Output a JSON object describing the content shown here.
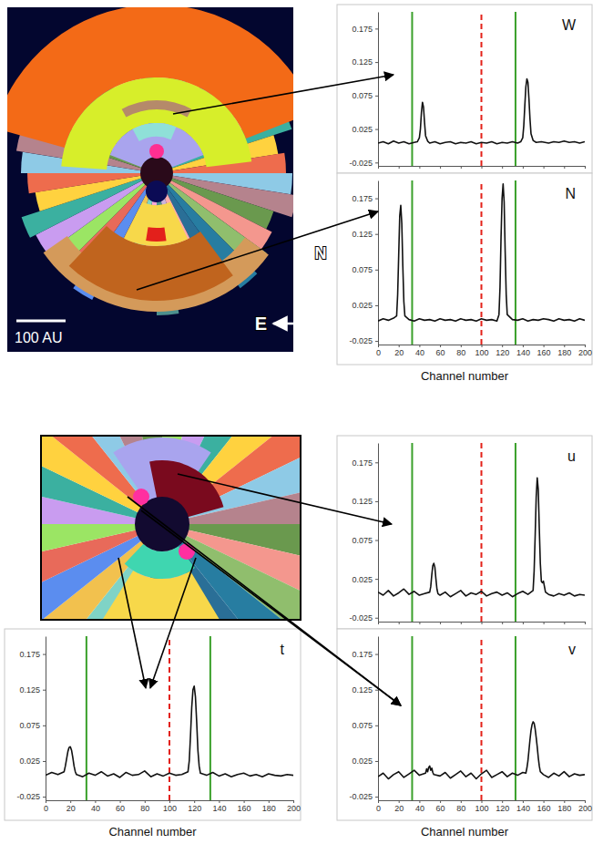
{
  "map": {
    "scale_label": "100 AU",
    "north_label": "N",
    "east_label": "E"
  },
  "chart_data": [
    {
      "type": "line",
      "title": "W",
      "color": "#111111",
      "tick_labels": "y",
      "xlim": [
        0,
        200
      ],
      "xticks": [
        0,
        20,
        40,
        60,
        80,
        100,
        120,
        140,
        160,
        180,
        200
      ],
      "ylim": [
        -0.03,
        0.2
      ],
      "yticks": [
        -0.025,
        0.025,
        0.075,
        0.125,
        0.175
      ],
      "vlines": [
        {
          "x": 33,
          "color": "#3aa02a",
          "line_style": "solid"
        },
        {
          "x": 100,
          "color": "#e32119",
          "line_style": "dashed"
        },
        {
          "x": 133,
          "color": "#3aa02a",
          "line_style": "solid"
        }
      ],
      "x": [
        0,
        5,
        10,
        15,
        20,
        25,
        30,
        35,
        38,
        40,
        41,
        42,
        43,
        44,
        45,
        46,
        48,
        50,
        55,
        60,
        65,
        70,
        75,
        80,
        85,
        90,
        95,
        100,
        105,
        110,
        115,
        120,
        125,
        130,
        135,
        138,
        140,
        141,
        142,
        143,
        144,
        145,
        146,
        147,
        148,
        150,
        153,
        158,
        165,
        170,
        175,
        180,
        185,
        190,
        195,
        200
      ],
      "values": [
        0.004,
        0.006,
        0.003,
        0.007,
        0.004,
        0.006,
        0.003,
        0.005,
        0.006,
        0.012,
        0.025,
        0.05,
        0.065,
        0.058,
        0.035,
        0.015,
        0.007,
        0.004,
        0.006,
        0.003,
        0.005,
        0.006,
        0.003,
        0.005,
        0.004,
        0.006,
        0.003,
        0.005,
        0.004,
        0.006,
        0.003,
        0.005,
        0.004,
        0.006,
        0.004,
        0.006,
        0.012,
        0.03,
        0.06,
        0.088,
        0.1,
        0.095,
        0.07,
        0.04,
        0.018,
        0.008,
        0.005,
        0.006,
        0.004,
        0.006,
        0.005,
        0.007,
        0.005,
        0.006,
        0.004,
        0.006
      ]
    },
    {
      "type": "line",
      "title": "N",
      "xlabel": "Channel number",
      "color": "#111111",
      "xlim": [
        0,
        200
      ],
      "xticks": [
        0,
        20,
        40,
        60,
        80,
        100,
        120,
        140,
        160,
        180,
        200
      ],
      "ylim": [
        -0.03,
        0.2
      ],
      "yticks": [
        -0.025,
        0.025,
        0.075,
        0.125,
        0.175
      ],
      "vlines": [
        {
          "x": 33,
          "color": "#3aa02a",
          "line_style": "solid"
        },
        {
          "x": 100,
          "color": "#e32119",
          "line_style": "dashed"
        },
        {
          "x": 133,
          "color": "#3aa02a",
          "line_style": "solid"
        }
      ],
      "x": [
        0,
        5,
        10,
        15,
        18,
        19,
        20,
        21,
        22,
        23,
        24,
        25,
        26,
        30,
        35,
        40,
        45,
        50,
        55,
        60,
        65,
        70,
        75,
        80,
        85,
        90,
        95,
        100,
        105,
        110,
        115,
        117,
        118,
        119,
        120,
        121,
        122,
        123,
        124,
        125,
        130,
        135,
        140,
        145,
        150,
        155,
        160,
        165,
        170,
        175,
        180,
        185,
        190,
        195,
        200
      ],
      "values": [
        0.003,
        0.006,
        0.004,
        0.007,
        0.01,
        0.04,
        0.095,
        0.15,
        0.165,
        0.14,
        0.08,
        0.03,
        0.01,
        0.005,
        0.003,
        0.006,
        0.004,
        0.005,
        0.003,
        0.006,
        0.004,
        0.005,
        0.003,
        0.006,
        0.004,
        0.005,
        0.003,
        0.006,
        0.004,
        0.005,
        0.003,
        0.012,
        0.05,
        0.12,
        0.175,
        0.195,
        0.17,
        0.1,
        0.04,
        0.012,
        0.005,
        0.004,
        0.006,
        0.003,
        0.005,
        0.004,
        0.006,
        0.005,
        0.003,
        0.006,
        0.004,
        0.005,
        0.003,
        0.006,
        0.004
      ]
    },
    {
      "type": "line",
      "title": "u",
      "color": "#111111",
      "tick_labels": "y",
      "xlim": [
        0,
        200
      ],
      "xticks": [
        0,
        20,
        40,
        60,
        80,
        100,
        120,
        140,
        160,
        180,
        200
      ],
      "ylim": [
        -0.03,
        0.2
      ],
      "yticks": [
        -0.025,
        0.025,
        0.075,
        0.125,
        0.175
      ],
      "vlines": [
        {
          "x": 33,
          "color": "#3aa02a",
          "line_style": "solid"
        },
        {
          "x": 100,
          "color": "#e32119",
          "line_style": "dashed"
        },
        {
          "x": 133,
          "color": "#3aa02a",
          "line_style": "solid"
        }
      ],
      "x": [
        0,
        5,
        10,
        15,
        20,
        25,
        30,
        35,
        40,
        45,
        50,
        51,
        52,
        53,
        54,
        55,
        56,
        57,
        58,
        60,
        65,
        70,
        75,
        80,
        85,
        90,
        95,
        100,
        105,
        110,
        115,
        120,
        125,
        130,
        135,
        140,
        145,
        150,
        151,
        152,
        153,
        154,
        155,
        156,
        157,
        158,
        159,
        160,
        161,
        162,
        165,
        170,
        175,
        180,
        185,
        190,
        195,
        200
      ],
      "values": [
        0.008,
        0.004,
        0.01,
        0.003,
        0.007,
        0.012,
        0.005,
        0.009,
        0.004,
        0.006,
        0.008,
        0.015,
        0.03,
        0.042,
        0.045,
        0.04,
        0.025,
        0.012,
        0.006,
        0.004,
        0.008,
        0.002,
        0.006,
        0.01,
        0.003,
        0.007,
        0.005,
        0.009,
        0.003,
        0.006,
        0.008,
        0.004,
        0.007,
        0.002,
        0.006,
        0.009,
        0.005,
        0.01,
        0.035,
        0.08,
        0.13,
        0.155,
        0.14,
        0.09,
        0.045,
        0.022,
        0.02,
        0.022,
        0.015,
        0.008,
        0.005,
        0.003,
        0.006,
        0.004,
        0.007,
        0.003,
        0.005,
        0.004
      ]
    },
    {
      "type": "line",
      "title": "v",
      "xlabel": "Channel number",
      "color": "#111111",
      "xlim": [
        0,
        200
      ],
      "xticks": [
        0,
        20,
        40,
        60,
        80,
        100,
        120,
        140,
        160,
        180,
        200
      ],
      "ylim": [
        -0.03,
        0.2
      ],
      "yticks": [
        -0.025,
        0.025,
        0.075,
        0.125,
        0.175
      ],
      "vlines": [
        {
          "x": 33,
          "color": "#3aa02a",
          "line_style": "solid"
        },
        {
          "x": 100,
          "color": "#e32119",
          "line_style": "dashed"
        },
        {
          "x": 133,
          "color": "#3aa02a",
          "line_style": "solid"
        }
      ],
      "x": [
        0,
        5,
        10,
        15,
        20,
        25,
        30,
        35,
        40,
        46,
        47,
        48,
        49,
        50,
        51,
        52,
        53,
        54,
        60,
        65,
        70,
        75,
        80,
        85,
        90,
        95,
        100,
        105,
        110,
        115,
        120,
        125,
        130,
        135,
        140,
        143,
        144,
        145,
        146,
        147,
        148,
        149,
        150,
        151,
        152,
        153,
        154,
        155,
        156,
        157,
        160,
        165,
        170,
        175,
        180,
        185,
        190,
        195,
        200
      ],
      "values": [
        0.003,
        0.008,
        0.0,
        0.006,
        0.01,
        0.002,
        0.007,
        0.012,
        0.005,
        0.008,
        0.014,
        0.01,
        0.016,
        0.018,
        0.012,
        0.015,
        0.009,
        0.006,
        0.004,
        0.009,
        0.001,
        0.006,
        0.011,
        0.003,
        0.008,
        0.0,
        0.007,
        0.012,
        0.002,
        0.006,
        0.01,
        0.003,
        0.008,
        0.005,
        0.009,
        0.008,
        0.015,
        0.025,
        0.04,
        0.055,
        0.068,
        0.076,
        0.08,
        0.078,
        0.07,
        0.058,
        0.045,
        0.03,
        0.018,
        0.01,
        0.006,
        0.002,
        0.008,
        0.004,
        0.01,
        0.003,
        0.007,
        0.005,
        0.006
      ]
    },
    {
      "type": "line",
      "title": "t",
      "xlabel": "Channel number",
      "color": "#111111",
      "xlim": [
        0,
        200
      ],
      "xticks": [
        0,
        20,
        40,
        60,
        80,
        100,
        120,
        140,
        160,
        180,
        200
      ],
      "ylim": [
        -0.03,
        0.2
      ],
      "yticks": [
        -0.025,
        0.025,
        0.075,
        0.125,
        0.175
      ],
      "vlines": [
        {
          "x": 33,
          "color": "#3aa02a",
          "line_style": "solid"
        },
        {
          "x": 100,
          "color": "#e32119",
          "line_style": "dashed"
        },
        {
          "x": 133,
          "color": "#3aa02a",
          "line_style": "solid"
        }
      ],
      "x": [
        0,
        5,
        10,
        15,
        16,
        17,
        18,
        19,
        20,
        21,
        22,
        23,
        24,
        25,
        30,
        35,
        40,
        45,
        50,
        55,
        60,
        65,
        70,
        75,
        80,
        85,
        90,
        95,
        100,
        105,
        110,
        115,
        116,
        117,
        118,
        119,
        120,
        121,
        122,
        123,
        124,
        125,
        130,
        135,
        140,
        145,
        150,
        155,
        160,
        165,
        170,
        175,
        180,
        185,
        190,
        195,
        200
      ],
      "values": [
        0.005,
        0.009,
        0.006,
        0.01,
        0.018,
        0.028,
        0.038,
        0.044,
        0.045,
        0.04,
        0.03,
        0.018,
        0.01,
        0.006,
        0.003,
        0.008,
        0.005,
        0.01,
        0.004,
        0.007,
        0.002,
        0.009,
        0.005,
        0.006,
        0.011,
        0.003,
        0.007,
        0.004,
        0.008,
        0.005,
        0.006,
        0.01,
        0.025,
        0.06,
        0.1,
        0.125,
        0.13,
        0.115,
        0.08,
        0.04,
        0.018,
        0.008,
        0.005,
        0.009,
        0.004,
        0.007,
        0.003,
        0.006,
        0.008,
        0.004,
        0.006,
        0.003,
        0.007,
        0.005,
        0.004,
        0.006,
        0.005
      ]
    }
  ]
}
